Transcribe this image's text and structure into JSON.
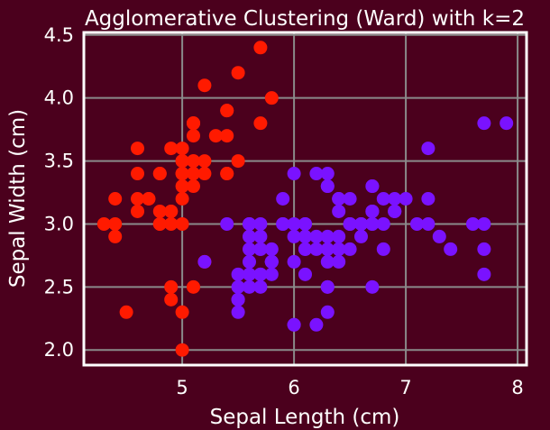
{
  "chart_data": {
    "type": "scatter",
    "title": "Agglomerative Clustering (Ward) with k=2",
    "xlabel": "Sepal Length (cm)",
    "ylabel": "Sepal Width (cm)",
    "xlim": [
      4.12,
      8.08
    ],
    "ylim": [
      1.88,
      4.52
    ],
    "xticks": [
      5,
      6,
      7,
      8
    ],
    "xtick_labels": [
      "5",
      "6",
      "7",
      "8"
    ],
    "yticks": [
      2.0,
      2.5,
      3.0,
      3.5,
      4.0,
      4.5
    ],
    "ytick_labels": [
      "2.0",
      "2.5",
      "3.0",
      "3.5",
      "4.0",
      "4.5"
    ],
    "grid": true,
    "legend": "none",
    "series": [
      {
        "color": "#ff1a00",
        "points": [
          [
            5.1,
            3.5
          ],
          [
            4.9,
            3.0
          ],
          [
            4.7,
            3.2
          ],
          [
            4.6,
            3.1
          ],
          [
            5.0,
            3.6
          ],
          [
            5.4,
            3.9
          ],
          [
            4.6,
            3.4
          ],
          [
            5.0,
            3.4
          ],
          [
            4.4,
            2.9
          ],
          [
            4.9,
            3.1
          ],
          [
            5.4,
            3.7
          ],
          [
            4.8,
            3.4
          ],
          [
            4.8,
            3.0
          ],
          [
            4.3,
            3.0
          ],
          [
            5.8,
            4.0
          ],
          [
            5.7,
            4.4
          ],
          [
            5.4,
            3.9
          ],
          [
            5.1,
            3.5
          ],
          [
            5.7,
            3.8
          ],
          [
            5.1,
            3.8
          ],
          [
            5.4,
            3.4
          ],
          [
            5.1,
            3.7
          ],
          [
            4.6,
            3.6
          ],
          [
            5.1,
            3.3
          ],
          [
            4.8,
            3.4
          ],
          [
            5.0,
            3.0
          ],
          [
            5.0,
            3.4
          ],
          [
            5.2,
            3.5
          ],
          [
            5.2,
            3.4
          ],
          [
            4.7,
            3.2
          ],
          [
            4.8,
            3.1
          ],
          [
            5.4,
            3.4
          ],
          [
            5.2,
            4.1
          ],
          [
            5.5,
            4.2
          ],
          [
            4.9,
            3.1
          ],
          [
            5.0,
            3.2
          ],
          [
            5.5,
            3.5
          ],
          [
            4.9,
            3.6
          ],
          [
            4.4,
            3.0
          ],
          [
            5.1,
            3.4
          ],
          [
            5.0,
            3.5
          ],
          [
            4.5,
            2.3
          ],
          [
            4.4,
            3.2
          ],
          [
            5.0,
            3.5
          ],
          [
            5.1,
            3.8
          ],
          [
            4.8,
            3.0
          ],
          [
            5.1,
            3.8
          ],
          [
            4.6,
            3.2
          ],
          [
            5.3,
            3.7
          ],
          [
            5.0,
            3.3
          ],
          [
            4.9,
            2.5
          ],
          [
            5.0,
            2.0
          ],
          [
            4.9,
            2.4
          ],
          [
            5.0,
            2.3
          ],
          [
            5.2,
            2.7
          ],
          [
            5.1,
            2.5
          ]
        ]
      },
      {
        "color": "#7a12ff",
        "points": [
          [
            7.0,
            3.2
          ],
          [
            6.4,
            3.2
          ],
          [
            6.9,
            3.1
          ],
          [
            5.5,
            2.3
          ],
          [
            6.5,
            2.8
          ],
          [
            5.7,
            2.8
          ],
          [
            6.3,
            3.3
          ],
          [
            6.6,
            2.9
          ],
          [
            5.2,
            2.7
          ],
          [
            5.9,
            3.0
          ],
          [
            6.0,
            2.2
          ],
          [
            6.1,
            2.9
          ],
          [
            5.6,
            2.9
          ],
          [
            6.7,
            3.1
          ],
          [
            5.6,
            3.0
          ],
          [
            5.8,
            2.7
          ],
          [
            6.2,
            2.2
          ],
          [
            5.6,
            2.5
          ],
          [
            5.9,
            3.2
          ],
          [
            6.1,
            2.8
          ],
          [
            6.3,
            2.5
          ],
          [
            6.1,
            2.8
          ],
          [
            6.4,
            2.9
          ],
          [
            6.6,
            3.0
          ],
          [
            6.8,
            2.8
          ],
          [
            6.7,
            3.0
          ],
          [
            6.0,
            2.9
          ],
          [
            5.7,
            2.6
          ],
          [
            5.5,
            2.4
          ],
          [
            5.5,
            2.4
          ],
          [
            5.8,
            2.7
          ],
          [
            6.0,
            2.7
          ],
          [
            5.4,
            3.0
          ],
          [
            6.0,
            3.4
          ],
          [
            6.7,
            3.1
          ],
          [
            6.3,
            2.3
          ],
          [
            5.6,
            3.0
          ],
          [
            5.5,
            2.5
          ],
          [
            5.5,
            2.6
          ],
          [
            6.1,
            3.0
          ],
          [
            5.8,
            2.6
          ],
          [
            5.6,
            2.7
          ],
          [
            5.7,
            3.0
          ],
          [
            5.7,
            2.9
          ],
          [
            6.2,
            2.9
          ],
          [
            5.7,
            2.8
          ],
          [
            6.3,
            3.3
          ],
          [
            5.8,
            2.7
          ],
          [
            7.1,
            3.0
          ],
          [
            6.3,
            2.9
          ],
          [
            6.5,
            3.0
          ],
          [
            7.6,
            3.0
          ],
          [
            7.3,
            2.9
          ],
          [
            6.7,
            2.5
          ],
          [
            7.2,
            3.6
          ],
          [
            6.5,
            3.2
          ],
          [
            6.4,
            2.7
          ],
          [
            6.8,
            3.0
          ],
          [
            5.7,
            2.5
          ],
          [
            5.8,
            2.8
          ],
          [
            6.4,
            3.2
          ],
          [
            6.5,
            3.0
          ],
          [
            7.7,
            3.8
          ],
          [
            7.7,
            2.6
          ],
          [
            6.0,
            2.2
          ],
          [
            6.9,
            3.2
          ],
          [
            5.6,
            2.8
          ],
          [
            7.7,
            2.8
          ],
          [
            6.3,
            2.7
          ],
          [
            6.7,
            3.3
          ],
          [
            7.2,
            3.2
          ],
          [
            6.2,
            2.8
          ],
          [
            6.1,
            3.0
          ],
          [
            6.4,
            2.8
          ],
          [
            7.2,
            3.0
          ],
          [
            7.4,
            2.8
          ],
          [
            7.9,
            3.8
          ],
          [
            6.4,
            2.8
          ],
          [
            6.3,
            2.8
          ],
          [
            6.1,
            2.6
          ],
          [
            7.7,
            3.0
          ],
          [
            6.3,
            3.4
          ],
          [
            6.4,
            3.1
          ],
          [
            6.0,
            3.0
          ],
          [
            6.9,
            3.1
          ],
          [
            6.7,
            3.1
          ],
          [
            6.9,
            3.1
          ],
          [
            5.8,
            2.7
          ],
          [
            6.8,
            3.2
          ],
          [
            6.7,
            3.3
          ],
          [
            6.7,
            3.0
          ],
          [
            6.3,
            2.5
          ],
          [
            6.5,
            3.0
          ],
          [
            6.2,
            3.4
          ],
          [
            5.9,
            3.0
          ],
          [
            5.6,
            2.6
          ],
          [
            5.7,
            2.6
          ],
          [
            6.6,
            3.0
          ]
        ]
      }
    ]
  }
}
